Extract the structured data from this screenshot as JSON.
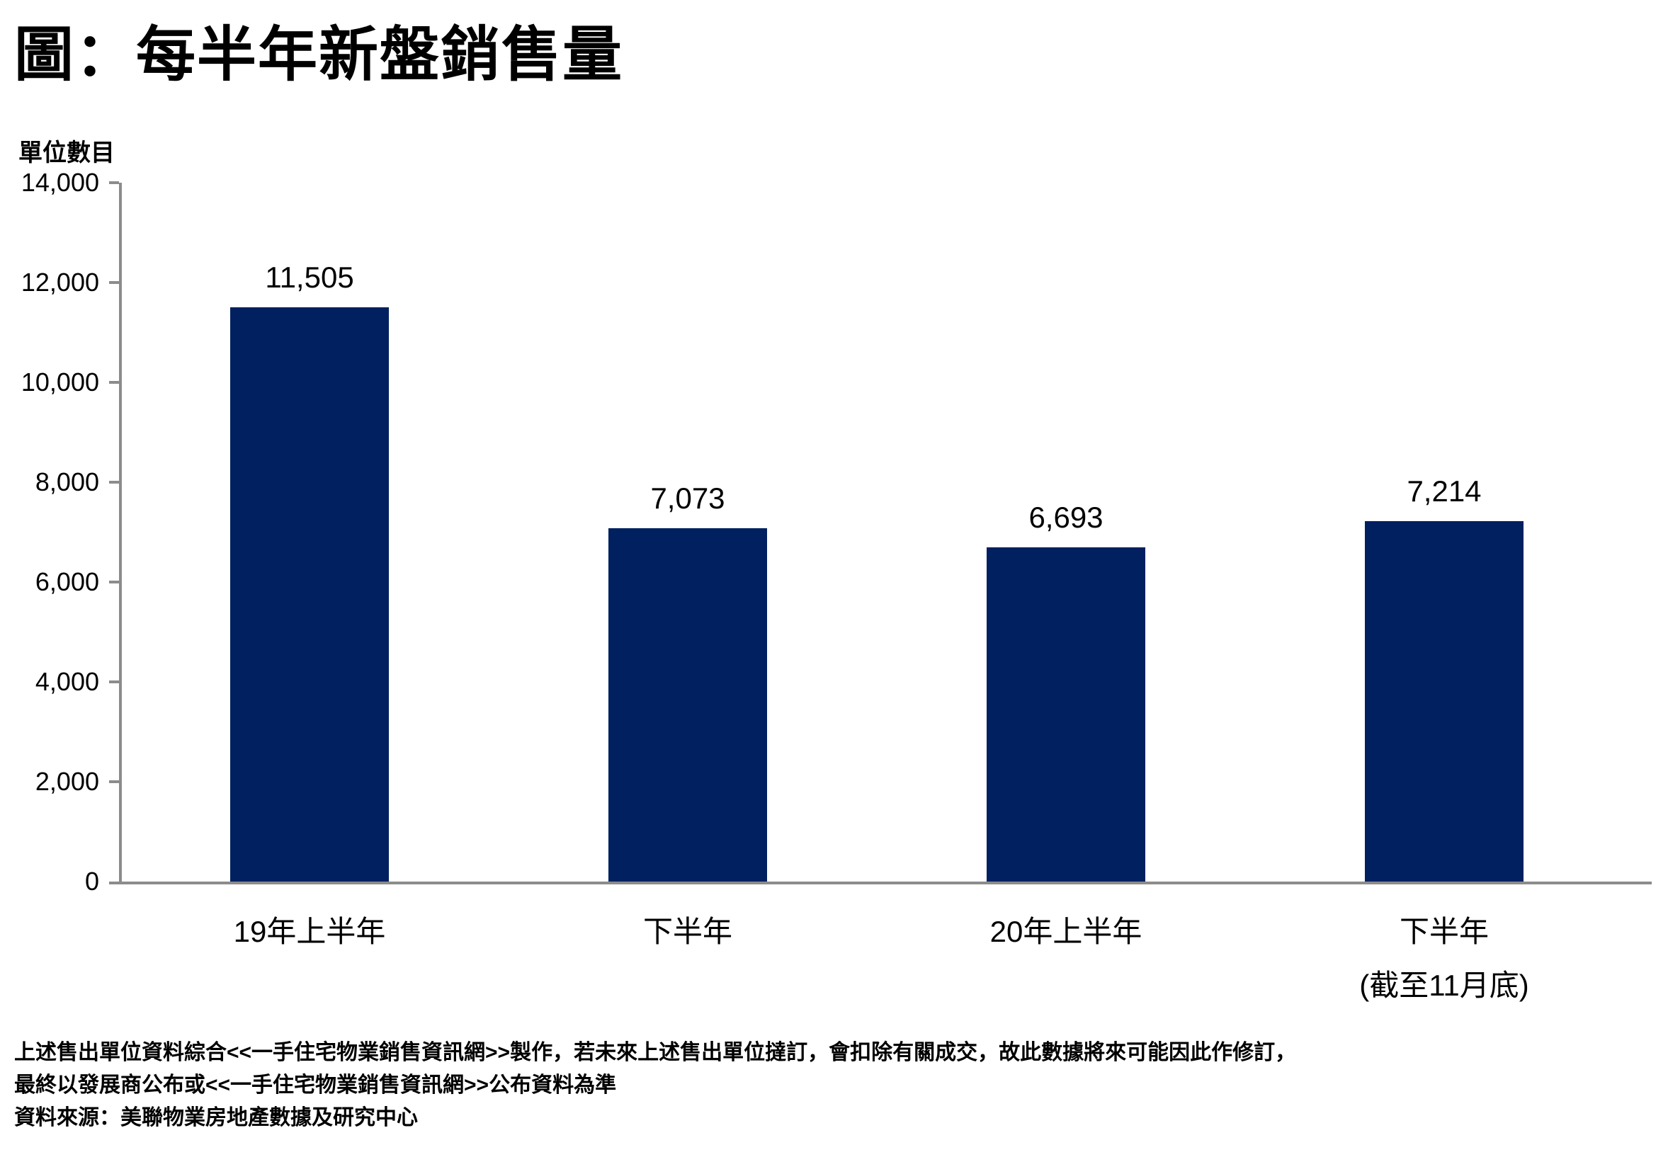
{
  "chart_data": {
    "type": "bar",
    "title": "圖：每半年新盤銷售量",
    "ylabel": "單位數目",
    "xlabel": "",
    "categories": [
      "19年上半年",
      "下半年",
      "20年上半年",
      "下半年"
    ],
    "category_sublabels": [
      "",
      "",
      "",
      "(截至11月底)"
    ],
    "values": [
      11505,
      7073,
      6693,
      7214
    ],
    "value_labels": [
      "11,505",
      "7,073",
      "6,693",
      "7,214"
    ],
    "ylim": [
      0,
      14000
    ],
    "ytick_interval": 2000,
    "ytick_labels": [
      "0",
      "2,000",
      "4,000",
      "6,000",
      "8,000",
      "10,000",
      "12,000",
      "14,000"
    ],
    "grid": false,
    "legend": "none",
    "bar_color": "#002060",
    "axis_color": "#8C8C8C",
    "text_color": "#000000"
  },
  "footer": {
    "lines": [
      "上述售出單位資料綜合<<一手住宅物業銷售資訊網>>製作，若未來上述售出單位撻訂，會扣除有關成交，故此數據將來可能因此作修訂，",
      "最終以發展商公布或<<一手住宅物業銷售資訊網>>公布資料為準",
      "資料來源：美聯物業房地產數據及研究中心"
    ]
  }
}
